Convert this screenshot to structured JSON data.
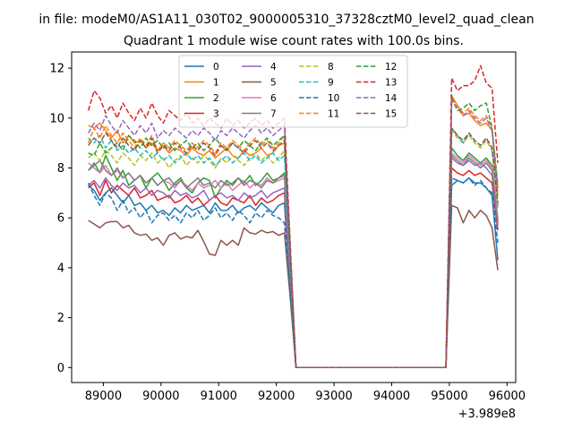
{
  "chart_data": {
    "type": "line",
    "suptitle": "in file: modeM0/AS1A11_030T02_9000005310_37328cztM0_level2_quad_clean",
    "title": "Quadrant 1 module wise count rates with 100.0s bins.",
    "xlabel": "",
    "ylabel": "",
    "x_offset_label": "+3.989e8",
    "xlim": [
      88450,
      96150
    ],
    "ylim": [
      -0.6,
      12.65
    ],
    "x_ticks": [
      89000,
      90000,
      91000,
      92000,
      93000,
      94000,
      95000,
      96000
    ],
    "x_tick_labels": [
      "89000",
      "90000",
      "91000",
      "92000",
      "93000",
      "94000",
      "95000",
      "96000"
    ],
    "y_ticks": [
      0,
      2,
      4,
      6,
      8,
      10,
      12
    ],
    "y_tick_labels": [
      "0",
      "2",
      "4",
      "6",
      "8",
      "10",
      "12"
    ],
    "grid": false,
    "legend_position": "top-center",
    "legend_columns": 4,
    "segments": {
      "seg1_x": [
        88740,
        88840,
        88940,
        89040,
        89140,
        89240,
        89340,
        89440,
        89540,
        89640,
        89740,
        89840,
        89940,
        90040,
        90140,
        90240,
        90340,
        90440,
        90540,
        90640,
        90740,
        90840,
        90940,
        91040,
        91140,
        91240,
        91340,
        91440,
        91540,
        91640,
        91740,
        91840,
        91940,
        92040,
        92140
      ],
      "drop_x": [
        92240,
        92340
      ],
      "zero_x": [
        92440,
        92540,
        92640,
        92740,
        92840,
        92940,
        93040,
        93140,
        93240,
        93340,
        93440,
        93540,
        93640,
        93740,
        93840,
        93940,
        94040,
        94140,
        94240,
        94340,
        94440,
        94540,
        94640,
        94740,
        94840
      ],
      "seg2_x": [
        94940,
        95040,
        95140,
        95240,
        95340,
        95440,
        95540,
        95640,
        95740,
        95840
      ]
    },
    "series": [
      {
        "name": "0",
        "color": "#1f77b4",
        "dash": "solid",
        "seg1": [
          7.3,
          7.1,
          6.7,
          7.0,
          7.2,
          6.9,
          6.6,
          6.9,
          6.5,
          6.6,
          6.3,
          6.5,
          6.2,
          6.3,
          6.1,
          6.4,
          6.2,
          6.5,
          6.3,
          6.4,
          6.5,
          6.2,
          6.6,
          6.3,
          6.3,
          6.5,
          6.2,
          6.4,
          6.5,
          6.3,
          6.6,
          6.4,
          6.2,
          6.5,
          6.6
        ],
        "drop": [
          3.2,
          0.0
        ],
        "seg2": [
          0.0,
          7.3,
          7.5,
          7.4,
          7.6,
          7.4,
          7.4,
          7.2,
          6.9,
          4.3
        ]
      },
      {
        "name": "1",
        "color": "#ff7f0e",
        "dash": "solid",
        "seg1": [
          9.7,
          9.6,
          9.8,
          9.5,
          9.2,
          9.5,
          9.0,
          9.3,
          9.0,
          9.1,
          8.8,
          9.0,
          8.7,
          8.9,
          8.6,
          8.8,
          8.7,
          8.5,
          8.8,
          8.6,
          8.5,
          8.7,
          8.4,
          8.6,
          8.8,
          8.5,
          8.4,
          8.7,
          8.5,
          8.6,
          8.8,
          8.5,
          8.6,
          8.9,
          9.0
        ],
        "drop": [
          4.5,
          0.0
        ],
        "seg2": [
          0.0,
          10.9,
          10.5,
          10.1,
          10.2,
          9.9,
          9.7,
          9.8,
          9.5,
          6.9
        ]
      },
      {
        "name": "2",
        "color": "#2ca02c",
        "dash": "solid",
        "seg1": [
          7.9,
          8.2,
          7.8,
          8.5,
          8.0,
          7.5,
          7.9,
          7.3,
          7.5,
          7.7,
          7.2,
          7.6,
          7.8,
          7.5,
          7.1,
          7.4,
          7.6,
          7.2,
          7.0,
          7.4,
          7.6,
          7.5,
          6.8,
          7.2,
          7.5,
          7.3,
          7.6,
          7.4,
          7.7,
          7.3,
          7.5,
          7.8,
          7.5,
          7.6,
          7.8
        ],
        "drop": [
          4.0,
          0.0
        ],
        "seg2": [
          0.0,
          8.8,
          8.5,
          8.3,
          8.6,
          8.4,
          8.2,
          8.4,
          8.1,
          5.9
        ]
      },
      {
        "name": "3",
        "color": "#d62728",
        "dash": "solid",
        "seg1": [
          7.2,
          7.4,
          6.9,
          7.5,
          7.0,
          7.3,
          7.1,
          6.9,
          7.2,
          6.8,
          6.9,
          7.1,
          6.7,
          6.8,
          6.9,
          6.6,
          6.7,
          6.9,
          6.6,
          6.8,
          6.5,
          6.7,
          6.9,
          6.6,
          6.5,
          6.8,
          6.7,
          6.6,
          6.9,
          6.5,
          6.8,
          6.6,
          6.7,
          6.9,
          7.0
        ],
        "drop": [
          3.5,
          0.0
        ],
        "seg2": [
          0.0,
          8.0,
          7.8,
          7.7,
          7.9,
          7.7,
          7.8,
          7.6,
          7.4,
          5.5
        ]
      },
      {
        "name": "4",
        "color": "#9467bd",
        "dash": "solid",
        "seg1": [
          7.3,
          7.5,
          7.2,
          7.6,
          7.3,
          7.1,
          7.4,
          7.2,
          7.3,
          7.0,
          7.2,
          6.9,
          7.1,
          7.0,
          6.8,
          7.1,
          6.9,
          7.0,
          6.8,
          6.9,
          7.1,
          6.7,
          6.9,
          7.0,
          6.8,
          6.9,
          6.7,
          7.0,
          6.8,
          6.9,
          7.1,
          6.8,
          7.0,
          7.1,
          7.2
        ],
        "drop": [
          3.6,
          0.0
        ],
        "seg2": [
          0.0,
          8.4,
          8.2,
          8.1,
          8.3,
          8.1,
          8.2,
          8.0,
          7.7,
          5.7
        ]
      },
      {
        "name": "5",
        "color": "#8c564b",
        "dash": "solid",
        "seg1": [
          5.9,
          5.75,
          5.6,
          5.8,
          5.85,
          5.85,
          5.6,
          5.7,
          5.4,
          5.3,
          5.35,
          5.1,
          5.2,
          4.9,
          5.3,
          5.4,
          5.15,
          5.25,
          5.2,
          5.5,
          5.05,
          4.55,
          4.5,
          5.1,
          4.9,
          5.1,
          4.9,
          5.6,
          5.4,
          5.35,
          5.5,
          5.4,
          5.45,
          5.3,
          5.4
        ],
        "drop": [
          2.8,
          0.0
        ],
        "seg2": [
          0.0,
          6.5,
          6.4,
          5.8,
          6.3,
          6.0,
          6.3,
          6.1,
          5.6,
          3.9
        ]
      },
      {
        "name": "6",
        "color": "#e377c2",
        "dash": "solid",
        "seg1": [
          8.2,
          8.0,
          7.8,
          8.1,
          7.7,
          7.9,
          7.6,
          7.8,
          7.5,
          7.7,
          7.4,
          7.6,
          7.3,
          7.5,
          7.4,
          7.2,
          7.5,
          7.3,
          7.1,
          7.4,
          7.2,
          7.3,
          7.5,
          7.2,
          7.4,
          7.1,
          7.3,
          7.5,
          7.2,
          7.4,
          7.3,
          7.6,
          7.4,
          7.5,
          7.6
        ],
        "drop": [
          4.0,
          0.0
        ],
        "seg2": [
          0.0,
          8.6,
          8.4,
          8.2,
          8.5,
          8.3,
          8.1,
          8.3,
          8.0,
          6.0
        ]
      },
      {
        "name": "7",
        "color": "#7f7f7f",
        "dash": "solid",
        "seg1": [
          7.9,
          8.1,
          8.3,
          7.9,
          7.7,
          8.0,
          7.6,
          7.8,
          7.5,
          7.7,
          7.4,
          7.6,
          7.3,
          7.5,
          7.6,
          7.3,
          7.5,
          7.2,
          7.4,
          7.6,
          7.3,
          7.4,
          7.2,
          7.5,
          7.3,
          7.4,
          7.6,
          7.3,
          7.5,
          7.4,
          7.2,
          7.5,
          7.4,
          7.6,
          7.7
        ],
        "drop": [
          4.0,
          0.0
        ],
        "seg2": [
          0.0,
          8.5,
          8.3,
          8.1,
          8.4,
          8.2,
          8.0,
          8.2,
          7.9,
          5.8
        ]
      },
      {
        "name": "8",
        "color": "#bcbd22",
        "dash": "dashed",
        "seg1": [
          8.4,
          8.6,
          8.3,
          8.7,
          8.5,
          8.2,
          8.6,
          8.4,
          8.1,
          8.5,
          8.3,
          8.6,
          8.2,
          8.4,
          8.0,
          8.3,
          8.5,
          8.1,
          8.4,
          8.2,
          8.5,
          8.3,
          8.0,
          8.4,
          8.2,
          8.5,
          8.3,
          8.1,
          8.4,
          8.6,
          8.3,
          8.5,
          8.2,
          8.4,
          8.7
        ],
        "drop": [
          4.3,
          0.0
        ],
        "seg2": [
          0.0,
          9.5,
          9.2,
          9.0,
          9.3,
          9.0,
          8.8,
          9.1,
          8.7,
          6.4
        ]
      },
      {
        "name": "9",
        "color": "#17becf",
        "dash": "dashed",
        "seg1": [
          9.2,
          9.0,
          9.3,
          8.8,
          9.1,
          8.7,
          8.9,
          8.6,
          8.8,
          8.5,
          8.7,
          8.4,
          8.6,
          8.3,
          8.5,
          8.2,
          8.4,
          8.6,
          8.3,
          8.5,
          8.2,
          8.4,
          8.1,
          8.3,
          8.5,
          8.2,
          8.4,
          8.6,
          8.3,
          8.5,
          8.2,
          8.4,
          8.6,
          8.3,
          8.5
        ],
        "drop": [
          4.2,
          0.0
        ],
        "seg2": [
          0.0,
          9.6,
          9.3,
          9.0,
          9.4,
          9.1,
          8.9,
          9.2,
          8.8,
          6.5
        ]
      },
      {
        "name": "10",
        "color": "#1f77b4",
        "dash": "dashed",
        "seg1": [
          7.4,
          6.9,
          6.5,
          7.0,
          6.8,
          6.3,
          6.7,
          6.2,
          6.4,
          6.0,
          6.3,
          5.8,
          6.1,
          6.2,
          5.9,
          6.1,
          5.8,
          6.2,
          6.0,
          6.3,
          5.9,
          6.1,
          6.4,
          6.0,
          6.2,
          5.9,
          6.3,
          6.1,
          5.8,
          6.2,
          6.0,
          6.3,
          6.1,
          6.0,
          5.8
        ],
        "drop": [
          3.0,
          0.0
        ],
        "seg2": [
          0.0,
          7.6,
          7.5,
          7.4,
          7.6,
          7.3,
          7.5,
          7.2,
          7.0,
          5.0
        ]
      },
      {
        "name": "11",
        "color": "#ff7f0e",
        "dash": "dashed",
        "seg1": [
          9.0,
          9.6,
          9.2,
          9.7,
          9.3,
          9.0,
          9.4,
          9.1,
          8.8,
          9.2,
          8.9,
          9.3,
          8.7,
          9.0,
          8.8,
          9.1,
          8.9,
          8.7,
          9.0,
          8.8,
          9.1,
          8.9,
          8.6,
          9.0,
          8.8,
          9.1,
          8.9,
          8.7,
          9.0,
          9.2,
          8.9,
          9.1,
          8.8,
          9.0,
          9.3
        ],
        "drop": [
          4.6,
          0.0
        ],
        "seg2": [
          0.0,
          10.8,
          10.5,
          10.2,
          10.4,
          10.1,
          9.9,
          10.1,
          9.6,
          7.2
        ]
      },
      {
        "name": "12",
        "color": "#2ca02c",
        "dash": "dashed",
        "seg1": [
          8.6,
          8.5,
          9.0,
          8.6,
          8.8,
          9.0,
          8.7,
          9.3,
          9.1,
          8.8,
          9.2,
          8.9,
          9.1,
          8.8,
          9.0,
          8.7,
          8.9,
          9.1,
          8.8,
          9.0,
          8.7,
          8.9,
          9.2,
          8.9,
          8.7,
          9.0,
          8.8,
          9.1,
          8.9,
          8.7,
          9.0,
          9.2,
          8.9,
          9.1,
          9.3
        ],
        "drop": [
          4.5,
          0.0
        ],
        "seg2": [
          0.0,
          10.8,
          10.3,
          10.4,
          10.6,
          10.3,
          10.5,
          10.6,
          9.6,
          7.3
        ]
      },
      {
        "name": "13",
        "color": "#d62728",
        "dash": "dashed",
        "seg1": [
          10.3,
          11.1,
          10.8,
          10.2,
          10.5,
          10.0,
          10.6,
          10.2,
          9.9,
          10.4,
          10.0,
          10.6,
          10.1,
          9.8,
          10.3,
          10.1,
          9.9,
          10.2,
          9.8,
          10.0,
          9.7,
          10.0,
          9.8,
          9.6,
          10.0,
          9.7,
          9.9,
          9.6,
          9.8,
          10.0,
          9.7,
          9.9,
          9.6,
          9.8,
          10.0
        ],
        "drop": [
          5.0,
          0.0
        ],
        "seg2": [
          0.0,
          11.6,
          11.1,
          11.3,
          11.3,
          11.5,
          12.1,
          11.4,
          11.2,
          8.2
        ]
      },
      {
        "name": "14",
        "color": "#9467bd",
        "dash": "dashed",
        "seg1": [
          9.4,
          9.8,
          9.5,
          10.1,
          9.7,
          9.4,
          9.9,
          9.6,
          9.3,
          9.7,
          9.4,
          9.8,
          9.2,
          9.5,
          9.3,
          9.6,
          9.4,
          9.2,
          9.5,
          9.3,
          9.6,
          9.4,
          9.1,
          9.5,
          9.3,
          9.6,
          9.4,
          9.2,
          9.5,
          9.7,
          9.4,
          9.6,
          9.3,
          9.5,
          9.7
        ],
        "drop": [
          4.8,
          0.0
        ],
        "seg2": [
          0.0,
          10.7,
          10.4,
          10.1,
          10.3,
          10.0,
          9.8,
          10.0,
          9.5,
          7.1
        ]
      },
      {
        "name": "15",
        "color": "#8c564b",
        "dash": "dashed",
        "seg1": [
          8.9,
          9.2,
          9.0,
          9.4,
          9.1,
          8.8,
          9.2,
          8.9,
          8.7,
          9.1,
          8.8,
          9.2,
          8.6,
          8.9,
          8.7,
          9.0,
          8.8,
          8.6,
          8.9,
          8.7,
          9.0,
          8.8,
          8.5,
          8.9,
          8.7,
          9.0,
          8.8,
          8.6,
          8.9,
          9.1,
          8.8,
          9.0,
          8.7,
          8.9,
          9.1
        ],
        "drop": [
          4.5,
          0.0
        ],
        "seg2": [
          0.0,
          9.6,
          9.3,
          9.1,
          9.4,
          9.1,
          8.9,
          9.2,
          8.8,
          6.6
        ]
      }
    ]
  }
}
